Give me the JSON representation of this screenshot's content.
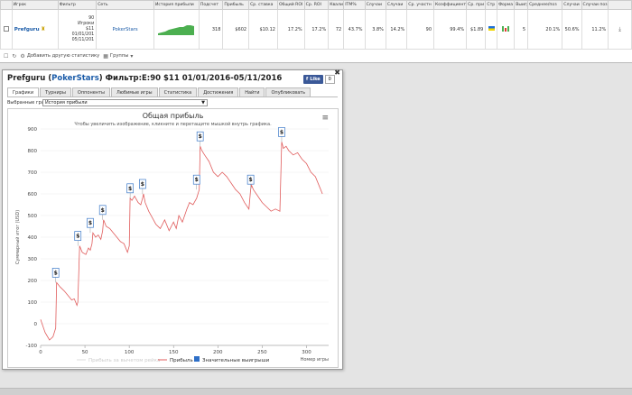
{
  "stats_table": {
    "headers": [
      "",
      "Игрок",
      "Фильтр",
      "Сеть",
      "История прибыли",
      "Подсчет",
      "Прибыль",
      "Ср. ставка",
      "Общий ROI",
      "Ср. ROI",
      "Квалиф",
      "ITM%",
      "Случаи",
      "Случаи",
      "Ср. участн",
      "Коэффициент",
      "Ср. при",
      "Стр",
      "Форма",
      "Выигр",
      "Среднее/поз",
      "Случаи",
      "Случаи поз",
      ""
    ],
    "row": {
      "player": "Prefguru",
      "filter_lines": [
        "90",
        "Игроки",
        "$11",
        "01/01/201",
        "05/11/201"
      ],
      "site": "PokerStars",
      "count": "318",
      "profit": "$602",
      "avg_stake": "$10.12",
      "total_roi": "17.2%",
      "avg_roi": "17.2%",
      "qualif": "72",
      "itm": "43.7%",
      "cases1": "3.8%",
      "cases2": "14.2%",
      "avg_participants": "90",
      "coefficient": "99.4%",
      "avg_prize": "$1.89",
      "wins": "5",
      "avg_pos": "20.1%",
      "cases3": "50.6%",
      "cases_pos": "11.2%"
    }
  },
  "toolbar": {
    "add_stats": "Добавить другую статистику",
    "groups": "Группы"
  },
  "panel": {
    "player": "Prefguru",
    "site": "PokerStars",
    "filter_text": "Фильтр:E:90 $11 01/01/2016-05/11/2016",
    "fb_like": "Like",
    "fb_count": "0",
    "tabs": [
      "Графики",
      "Турниры",
      "Оппоненты",
      "Любимые игры",
      "Статистика",
      "Достижения",
      "Найти",
      "Опубликовать"
    ],
    "select_label": "Выбранные графики:",
    "select_value": "История прибыли"
  },
  "chart_data": {
    "type": "line",
    "title": "Общая прибыль",
    "subtitle": "Чтобы увеличить изображение, кликните и перетащите мышкой внутрь графика.",
    "xlabel": "Номер игры",
    "ylabel": "Суммарный итог (USD)",
    "xlim": [
      0,
      325
    ],
    "ylim": [
      -100,
      900
    ],
    "x_ticks": [
      0,
      50,
      100,
      150,
      200,
      250,
      300
    ],
    "y_ticks": [
      -100,
      0,
      100,
      200,
      300,
      400,
      500,
      600,
      700,
      800,
      900
    ],
    "legend": [
      "Прибыль за вычетом рейка",
      "Прибыль",
      "Значительные выигрыши"
    ],
    "line_color": "#e05c5c",
    "series": [
      {
        "name": "Прибыль",
        "x": [
          0,
          5,
          10,
          14,
          17,
          18,
          22,
          27,
          31,
          35,
          38,
          41,
          42,
          44,
          47,
          51,
          54,
          56,
          58,
          59,
          62,
          65,
          68,
          70,
          71,
          74,
          78,
          82,
          86,
          90,
          94,
          98,
          100,
          101,
          103,
          106,
          110,
          113,
          115,
          116,
          118,
          122,
          126,
          130,
          135,
          140,
          145,
          150,
          153,
          156,
          160,
          165,
          168,
          172,
          176,
          179,
          180,
          182,
          185,
          190,
          195,
          200,
          205,
          210,
          215,
          220,
          225,
          230,
          235,
          237,
          238,
          240,
          245,
          250,
          255,
          260,
          265,
          270,
          272,
          274,
          277,
          280,
          285,
          290,
          295,
          300,
          305,
          310,
          315,
          318
        ],
        "values": [
          20,
          -40,
          -75,
          -60,
          -20,
          190,
          170,
          150,
          130,
          110,
          115,
          85,
          100,
          360,
          330,
          320,
          350,
          340,
          370,
          420,
          400,
          410,
          390,
          430,
          480,
          450,
          440,
          420,
          400,
          380,
          370,
          330,
          360,
          580,
          570,
          590,
          560,
          550,
          580,
          600,
          560,
          520,
          490,
          460,
          440,
          480,
          430,
          470,
          440,
          500,
          470,
          530,
          560,
          550,
          580,
          620,
          820,
          800,
          780,
          750,
          700,
          680,
          700,
          680,
          650,
          620,
          600,
          560,
          530,
          620,
          640,
          620,
          590,
          560,
          540,
          520,
          530,
          520,
          840,
          810,
          820,
          800,
          780,
          790,
          760,
          740,
          700,
          680,
          630,
          600
        ]
      }
    ],
    "big_wins_x": [
      17,
      42,
      56,
      70,
      101,
      115,
      176,
      180,
      237,
      272
    ],
    "big_wins_y": [
      190,
      360,
      420,
      480,
      580,
      600,
      620,
      820,
      620,
      840
    ],
    "big_win_symbol": "$"
  }
}
